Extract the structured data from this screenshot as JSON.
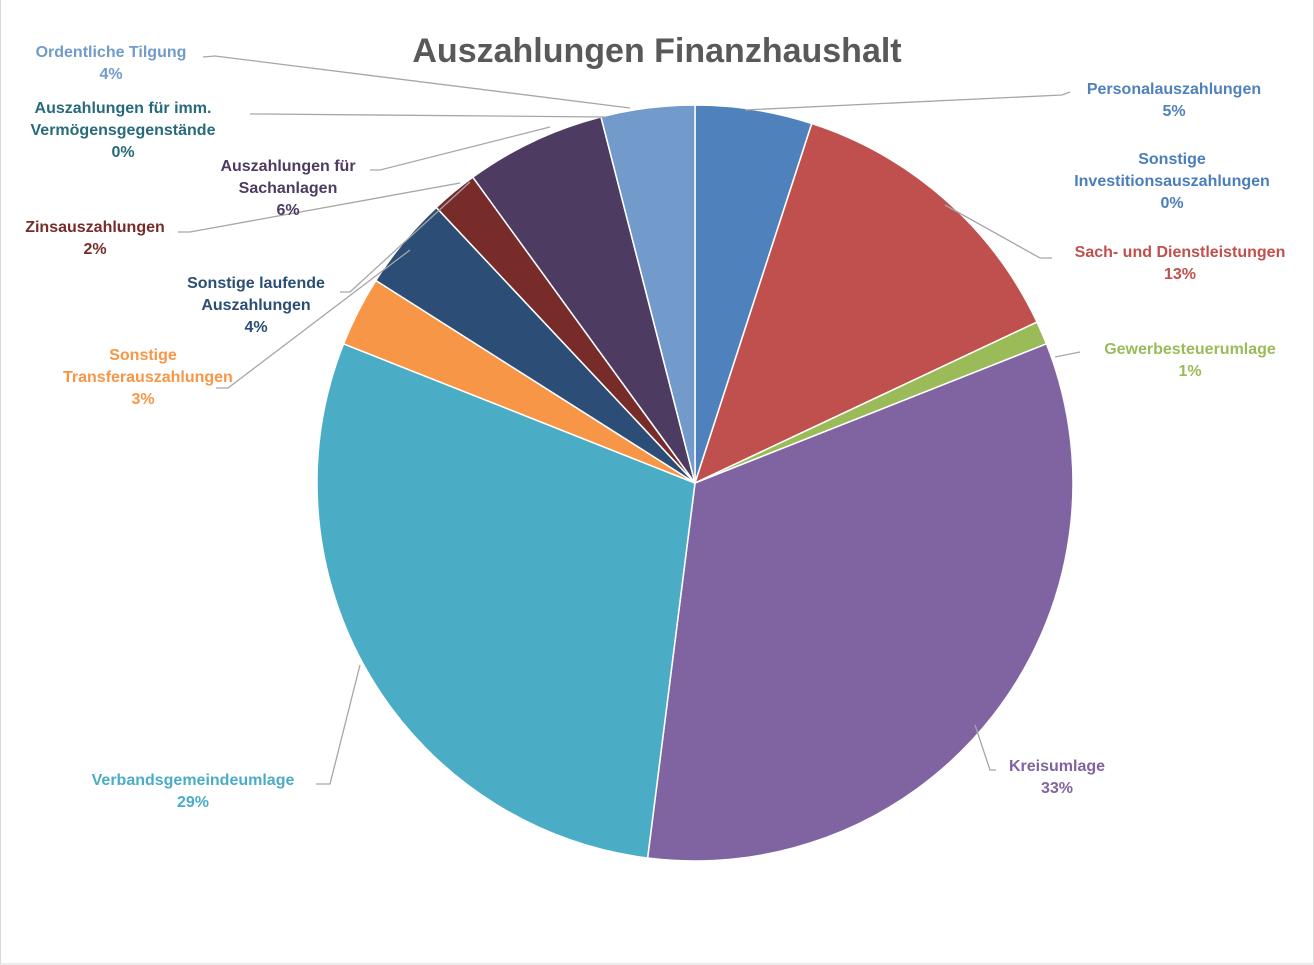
{
  "chart_data": {
    "type": "pie",
    "title": "Auszahlungen Finanzhaushalt",
    "categories": [
      "Personalauszahlungen",
      "Sonstige Investitionsauszahlungen",
      "Sach- und Dienstleistungen",
      "Gewerbesteuerumlage",
      "Kreisumlage",
      "Verbandsgemeindeumlage",
      "Sonstige Transferauszahlungen",
      "Sonstige laufende Auszahlungen",
      "Zinsauszahlungen",
      "Auszahlungen für Sachanlagen",
      "Auszahlungen für imm. Vermögensgegenstände",
      "Ordentliche Tilgung"
    ],
    "values": [
      5,
      0,
      13,
      1,
      33,
      29,
      3,
      4,
      2,
      6,
      0,
      4
    ],
    "value_labels": [
      "5%",
      "0%",
      "13%",
      "1%",
      "33%",
      "29%",
      "3%",
      "4%",
      "2%",
      "6%",
      "0%",
      "4%"
    ],
    "colors": [
      "#4f81bd",
      "#4a7ebb",
      "#c0504d",
      "#9bbb59",
      "#8064a2",
      "#4bacc6",
      "#f79646",
      "#2c4d75",
      "#772c2a",
      "#4d3b62",
      "#276a7c",
      "#729aca"
    ]
  }
}
